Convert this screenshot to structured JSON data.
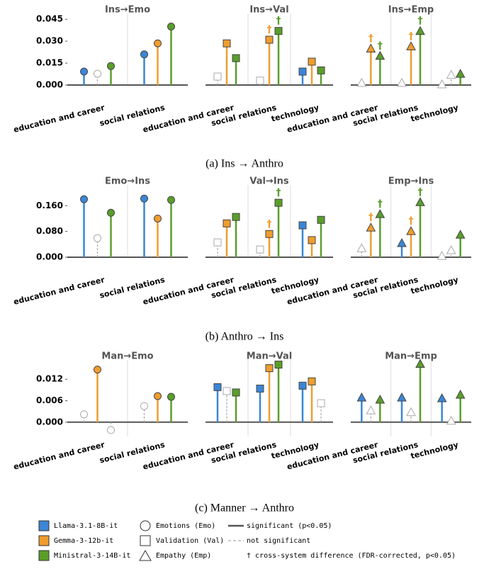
{
  "chart_data": [
    {
      "type": "lollipop",
      "title": "Ins→Emo",
      "marker": "circle",
      "categories": [
        "education and career",
        "social relations"
      ],
      "series": [
        {
          "name": "Llama-3.1-8B-it",
          "color": "#3b86d6",
          "values": [
            0.0092,
            0.021
          ],
          "significant": [
            true,
            true
          ],
          "dagger": [
            false,
            false
          ]
        },
        {
          "name": "Gemma-3-12b-it",
          "color": "#ef9d2e",
          "values": [
            0.0077,
            0.0285
          ],
          "significant": [
            false,
            true
          ],
          "dagger": [
            false,
            false
          ]
        },
        {
          "name": "Ministral-3-14B-it",
          "color": "#5a9e2a",
          "values": [
            0.013,
            0.04
          ],
          "significant": [
            true,
            true
          ],
          "dagger": [
            false,
            false
          ]
        }
      ],
      "ylim": [
        0,
        0.048
      ],
      "yticks": [
        {
          "value": 0,
          "label": "0.000"
        },
        {
          "value": 0.015,
          "label": "0.015"
        },
        {
          "value": 0.03,
          "label": "0.030"
        },
        {
          "value": 0.045,
          "label": "0.045"
        }
      ]
    },
    {
      "type": "lollipop",
      "title": "Ins→Val",
      "marker": "square",
      "categories": [
        "education and career",
        "social relations",
        "technology"
      ],
      "series": [
        {
          "name": "Llama-3.1-8B-it",
          "color": "#3b86d6",
          "values": [
            0.0058,
            0.003,
            0.0092
          ],
          "significant": [
            false,
            false,
            true
          ],
          "dagger": [
            false,
            false,
            false
          ]
        },
        {
          "name": "Gemma-3-12b-it",
          "color": "#ef9d2e",
          "values": [
            0.0285,
            0.031,
            0.016
          ],
          "significant": [
            true,
            true,
            true
          ],
          "dagger": [
            false,
            true,
            false
          ]
        },
        {
          "name": "Ministral-3-14B-it",
          "color": "#5a9e2a",
          "values": [
            0.0184,
            0.037,
            0.01
          ],
          "significant": [
            true,
            true,
            true
          ],
          "dagger": [
            false,
            true,
            false
          ]
        }
      ],
      "ylim": [
        0,
        0.048
      ]
    },
    {
      "type": "lollipop",
      "title": "Ins→Emp",
      "marker": "triangle",
      "categories": [
        "education and career",
        "social relations",
        "technology"
      ],
      "series": [
        {
          "name": "Llama-3.1-8B-it",
          "color": "#3b86d6",
          "values": [
            0.0015,
            0.0015,
            0.0005
          ],
          "significant": [
            false,
            false,
            false
          ],
          "dagger": [
            false,
            false,
            false
          ]
        },
        {
          "name": "Gemma-3-12b-it",
          "color": "#ef9d2e",
          "values": [
            0.025,
            0.0265,
            0.007
          ],
          "significant": [
            true,
            true,
            false
          ],
          "dagger": [
            true,
            true,
            false
          ]
        },
        {
          "name": "Ministral-3-14B-it",
          "color": "#5a9e2a",
          "values": [
            0.02,
            0.037,
            0.0077
          ],
          "significant": [
            true,
            true,
            true
          ],
          "dagger": [
            true,
            true,
            false
          ]
        }
      ],
      "ylim": [
        0,
        0.048
      ]
    },
    {
      "type": "lollipop",
      "title": "Emo→Ins",
      "marker": "circle",
      "categories": [
        "education and career",
        "social relations"
      ],
      "series": [
        {
          "name": "Llama-3.1-8B-it",
          "color": "#3b86d6",
          "values": [
            0.18,
            0.182
          ],
          "significant": [
            true,
            true
          ],
          "dagger": [
            false,
            false
          ]
        },
        {
          "name": "Gemma-3-12b-it",
          "color": "#ef9d2e",
          "values": [
            0.059,
            0.12
          ],
          "significant": [
            false,
            true
          ],
          "dagger": [
            false,
            false
          ]
        },
        {
          "name": "Ministral-3-14B-it",
          "color": "#5a9e2a",
          "values": [
            0.138,
            0.178
          ],
          "significant": [
            true,
            true
          ],
          "dagger": [
            false,
            false
          ]
        }
      ],
      "ylim": [
        0,
        0.22
      ],
      "yticks": [
        {
          "value": 0,
          "label": "0.000"
        },
        {
          "value": 0.08,
          "label": "0.080"
        },
        {
          "value": 0.16,
          "label": "0.160"
        }
      ]
    },
    {
      "type": "lollipop",
      "title": "Val→Ins",
      "marker": "square",
      "categories": [
        "education and career",
        "social relations",
        "technology"
      ],
      "series": [
        {
          "name": "Llama-3.1-8B-it",
          "color": "#3b86d6",
          "values": [
            0.046,
            0.024,
            0.099
          ],
          "significant": [
            false,
            false,
            true
          ],
          "dagger": [
            false,
            false,
            false
          ]
        },
        {
          "name": "Gemma-3-12b-it",
          "color": "#ef9d2e",
          "values": [
            0.105,
            0.072,
            0.053
          ],
          "significant": [
            true,
            true,
            true
          ],
          "dagger": [
            false,
            true,
            false
          ]
        },
        {
          "name": "Ministral-3-14B-it",
          "color": "#5a9e2a",
          "values": [
            0.125,
            0.169,
            0.116
          ],
          "significant": [
            true,
            true,
            true
          ],
          "dagger": [
            false,
            true,
            false
          ]
        }
      ],
      "ylim": [
        0,
        0.22
      ]
    },
    {
      "type": "lollipop",
      "title": "Emp→Ins",
      "marker": "triangle",
      "categories": [
        "education and career",
        "social relations",
        "technology"
      ],
      "series": [
        {
          "name": "Llama-3.1-8B-it",
          "color": "#3b86d6",
          "values": [
            0.028,
            0.044,
            0.004
          ],
          "significant": [
            false,
            true,
            false
          ],
          "dagger": [
            false,
            false,
            false
          ]
        },
        {
          "name": "Gemma-3-12b-it",
          "color": "#ef9d2e",
          "values": [
            0.092,
            0.081,
            0.022
          ],
          "significant": [
            true,
            true,
            false
          ],
          "dagger": [
            true,
            true,
            false
          ]
        },
        {
          "name": "Ministral-3-14B-it",
          "color": "#5a9e2a",
          "values": [
            0.134,
            0.171,
            0.07
          ],
          "significant": [
            true,
            true,
            true
          ],
          "dagger": [
            true,
            true,
            false
          ]
        }
      ],
      "ylim": [
        0,
        0.22
      ]
    },
    {
      "type": "lollipop",
      "title": "Man→Emo",
      "marker": "circle",
      "categories": [
        "education and career",
        "social relations"
      ],
      "series": [
        {
          "name": "Llama-3.1-8B-it",
          "color": "#3b86d6",
          "values": [
            0.0022,
            0.0045
          ],
          "significant": [
            false,
            false
          ],
          "dagger": [
            false,
            false
          ]
        },
        {
          "name": "Gemma-3-12b-it",
          "color": "#ef9d2e",
          "values": [
            0.0147,
            0.0073
          ],
          "significant": [
            true,
            true
          ],
          "dagger": [
            false,
            false
          ]
        },
        {
          "name": "Ministral-3-14B-it",
          "color": "#5a9e2a",
          "values": [
            -0.0022,
            0.0071
          ],
          "significant": [
            false,
            true
          ],
          "dagger": [
            false,
            false
          ]
        }
      ],
      "ylim": [
        -0.004,
        0.017
      ],
      "yticks": [
        {
          "value": 0,
          "label": "0.000"
        },
        {
          "value": 0.006,
          "label": "0.006"
        },
        {
          "value": 0.012,
          "label": "0.012"
        }
      ]
    },
    {
      "type": "lollipop",
      "title": "Man→Val",
      "marker": "square",
      "categories": [
        "education and career",
        "social relations",
        "technology"
      ],
      "series": [
        {
          "name": "Llama-3.1-8B-it",
          "color": "#3b86d6",
          "values": [
            0.0098,
            0.0094,
            0.0102
          ],
          "significant": [
            true,
            true,
            true
          ],
          "dagger": [
            false,
            false,
            false
          ]
        },
        {
          "name": "Gemma-3-12b-it",
          "color": "#ef9d2e",
          "values": [
            0.0087,
            0.0151,
            0.0114
          ],
          "significant": [
            false,
            true,
            true
          ],
          "dagger": [
            false,
            false,
            false
          ]
        },
        {
          "name": "Ministral-3-14B-it",
          "color": "#5a9e2a",
          "values": [
            0.0083,
            0.0161,
            0.0053
          ],
          "significant": [
            true,
            true,
            false
          ],
          "dagger": [
            false,
            false,
            false
          ]
        }
      ],
      "ylim": [
        -0.004,
        0.017
      ]
    },
    {
      "type": "lollipop",
      "title": "Man→Emp",
      "marker": "triangle",
      "categories": [
        "education and career",
        "social relations",
        "technology"
      ],
      "series": [
        {
          "name": "Llama-3.1-8B-it",
          "color": "#3b86d6",
          "values": [
            0.0069,
            0.0069,
            0.0067
          ],
          "significant": [
            true,
            true,
            true
          ],
          "dagger": [
            false,
            false,
            false
          ]
        },
        {
          "name": "Gemma-3-12b-it",
          "color": "#ef9d2e",
          "values": [
            0.0033,
            0.0028,
            0.0004
          ],
          "significant": [
            false,
            false,
            false
          ],
          "dagger": [
            false,
            false,
            false
          ]
        },
        {
          "name": "Ministral-3-14B-it",
          "color": "#5a9e2a",
          "values": [
            0.0063,
            0.0163,
            0.0077
          ],
          "significant": [
            true,
            true,
            true
          ],
          "dagger": [
            false,
            false,
            false
          ]
        }
      ],
      "ylim": [
        -0.004,
        0.017
      ]
    }
  ],
  "dagger_symbol": "†",
  "captions": [
    "(a) Ins → Anthro",
    "(b) Anthro → Ins",
    "(c) Manner → Anthro"
  ],
  "legend": {
    "shapes": [
      "Emotions (Emo)",
      "Validation (Val)",
      "Empathy (Emp)"
    ],
    "lines": [
      "significant (p<0.05)",
      "not significant"
    ],
    "note": "† cross-system difference (FDR-corrected, p<0.05)"
  }
}
